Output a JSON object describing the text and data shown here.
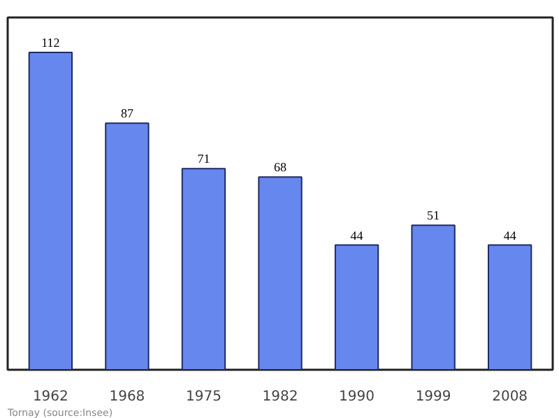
{
  "chart_data": {
    "type": "bar",
    "categories": [
      "1962",
      "1968",
      "1975",
      "1982",
      "1990",
      "1999",
      "2008"
    ],
    "values": [
      112,
      87,
      71,
      68,
      44,
      51,
      44
    ],
    "color": "#6688ee",
    "data_labels": true,
    "grid": false,
    "annotations": [
      "Tornay   (source:Insee)"
    ]
  }
}
